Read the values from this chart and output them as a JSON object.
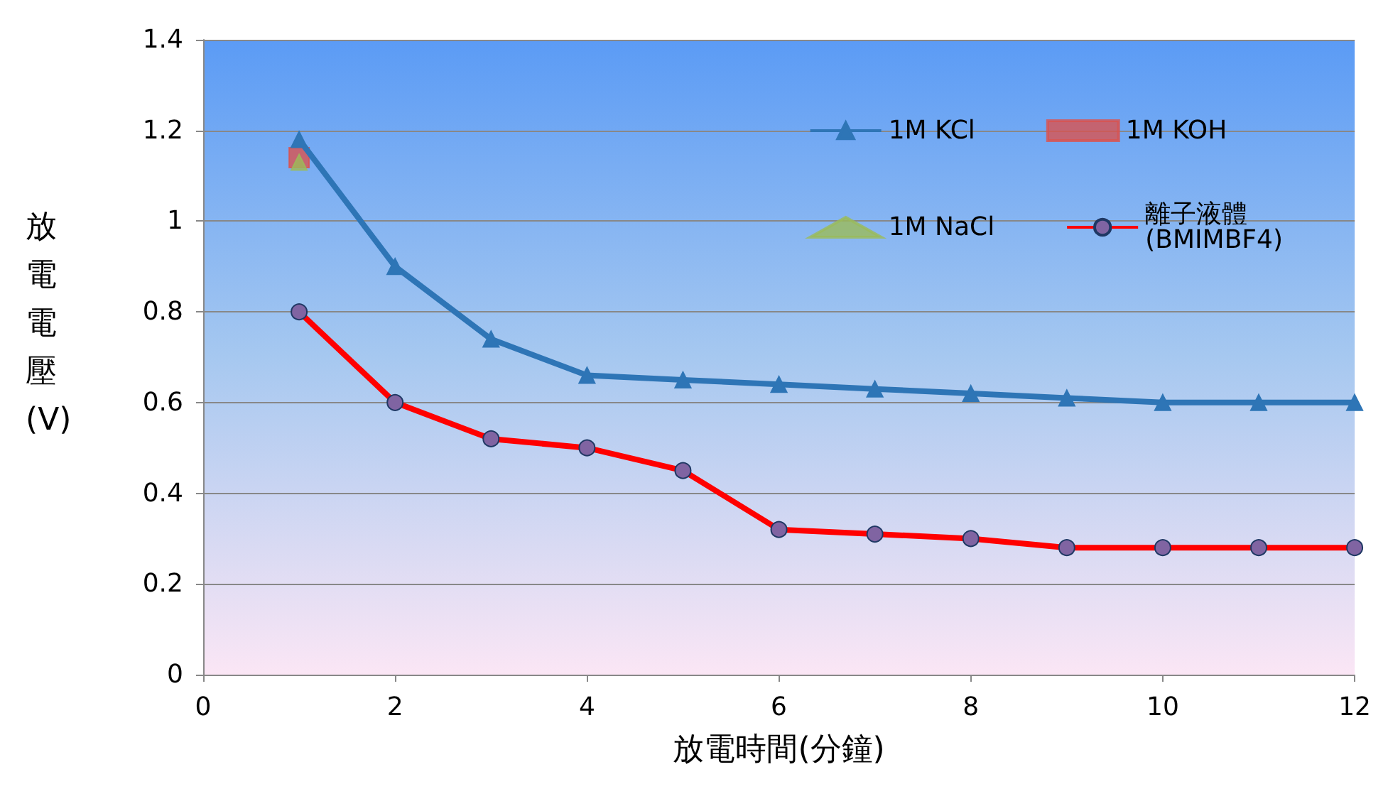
{
  "chart_data": {
    "type": "line",
    "xlabel": "放電時間(分鐘)",
    "ylabel": "放電電壓(V)",
    "xlim": [
      0,
      12
    ],
    "xticks": [
      0,
      2,
      4,
      6,
      8,
      10,
      12
    ],
    "ylim": [
      0,
      1.4
    ],
    "yticks": [
      0,
      0.2,
      0.4,
      0.6,
      0.8,
      1,
      1.2,
      1.4
    ],
    "grid": "y",
    "legend": "top right",
    "series": [
      {
        "name": "1M KCl",
        "color": "#2e75b6",
        "marker": "triangle",
        "x": [
          1,
          2,
          3,
          4,
          5,
          6,
          7,
          8,
          9,
          10,
          11,
          12
        ],
        "values": [
          1.18,
          0.9,
          0.74,
          0.66,
          0.65,
          0.64,
          0.63,
          0.62,
          0.61,
          0.6,
          0.6,
          0.6
        ]
      },
      {
        "name": "1M KOH",
        "type": "scatter",
        "color": "#d9534f",
        "marker": "square",
        "x": [
          1
        ],
        "values": [
          1.14
        ]
      },
      {
        "name": "1M NaCl",
        "type": "scatter",
        "color": "#9bbb59",
        "marker": "triangle",
        "x": [
          1
        ],
        "values": [
          1.13
        ]
      },
      {
        "name": "離子液體\n(BMIMBF4)",
        "color": "#ff0000",
        "marker": "circle",
        "x": [
          1,
          2,
          3,
          4,
          5,
          6,
          7,
          8,
          9,
          10,
          11,
          12
        ],
        "values": [
          0.8,
          0.6,
          0.52,
          0.5,
          0.45,
          0.32,
          0.31,
          0.3,
          0.28,
          0.28,
          0.28,
          0.28
        ]
      }
    ]
  }
}
